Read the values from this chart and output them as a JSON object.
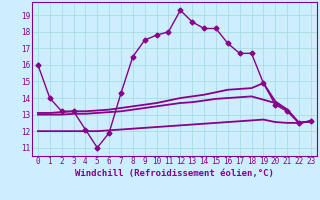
{
  "background_color": "#cceeff",
  "grid_color": "#aadddd",
  "line_color": "#880088",
  "xlim": [
    -0.5,
    23.5
  ],
  "ylim": [
    10.5,
    19.8
  ],
  "yticks": [
    11,
    12,
    13,
    14,
    15,
    16,
    17,
    18,
    19
  ],
  "xticks": [
    0,
    1,
    2,
    3,
    4,
    5,
    6,
    7,
    8,
    9,
    10,
    11,
    12,
    13,
    14,
    15,
    16,
    17,
    18,
    19,
    20,
    21,
    22,
    23
  ],
  "xlabel": "Windchill (Refroidissement éolien,°C)",
  "series": [
    {
      "x": [
        0,
        1,
        2,
        3,
        4,
        5,
        6,
        7,
        8,
        9,
        10,
        11,
        12,
        13,
        14,
        15,
        16,
        17,
        18,
        19,
        20,
        21,
        22,
        23
      ],
      "y": [
        16.0,
        14.0,
        13.2,
        13.2,
        12.1,
        11.0,
        11.9,
        14.3,
        16.5,
        17.5,
        17.8,
        18.0,
        19.3,
        18.6,
        18.2,
        18.2,
        17.3,
        16.7,
        16.7,
        14.9,
        13.6,
        13.2,
        12.5,
        12.6
      ],
      "marker": "D",
      "markersize": 2.5,
      "linewidth": 1.0,
      "has_marker": true
    },
    {
      "x": [
        0,
        1,
        2,
        3,
        4,
        5,
        6,
        7,
        8,
        9,
        10,
        11,
        12,
        13,
        14,
        15,
        16,
        17,
        18,
        19,
        20,
        21,
        22,
        23
      ],
      "y": [
        13.1,
        13.1,
        13.15,
        13.2,
        13.2,
        13.25,
        13.3,
        13.4,
        13.5,
        13.6,
        13.7,
        13.85,
        14.0,
        14.1,
        14.2,
        14.35,
        14.5,
        14.55,
        14.6,
        14.9,
        13.8,
        13.3,
        12.5,
        12.6
      ],
      "marker": null,
      "markersize": 0,
      "linewidth": 1.3,
      "has_marker": false
    },
    {
      "x": [
        0,
        1,
        2,
        3,
        4,
        5,
        6,
        7,
        8,
        9,
        10,
        11,
        12,
        13,
        14,
        15,
        16,
        17,
        18,
        19,
        20,
        21,
        22,
        23
      ],
      "y": [
        13.0,
        13.0,
        13.0,
        13.05,
        13.05,
        13.1,
        13.15,
        13.2,
        13.3,
        13.4,
        13.5,
        13.6,
        13.7,
        13.75,
        13.85,
        13.95,
        14.0,
        14.05,
        14.1,
        13.9,
        13.7,
        13.3,
        12.5,
        12.6
      ],
      "marker": null,
      "markersize": 0,
      "linewidth": 1.3,
      "has_marker": false
    },
    {
      "x": [
        0,
        1,
        2,
        3,
        4,
        5,
        6,
        7,
        8,
        9,
        10,
        11,
        12,
        13,
        14,
        15,
        16,
        17,
        18,
        19,
        20,
        21,
        22,
        23
      ],
      "y": [
        12.0,
        12.0,
        12.0,
        12.0,
        12.0,
        12.0,
        12.05,
        12.1,
        12.15,
        12.2,
        12.25,
        12.3,
        12.35,
        12.4,
        12.45,
        12.5,
        12.55,
        12.6,
        12.65,
        12.7,
        12.55,
        12.5,
        12.5,
        12.6
      ],
      "marker": null,
      "markersize": 0,
      "linewidth": 1.3,
      "has_marker": false
    }
  ],
  "tick_fontsize": 5.5,
  "label_fontsize": 6.5
}
